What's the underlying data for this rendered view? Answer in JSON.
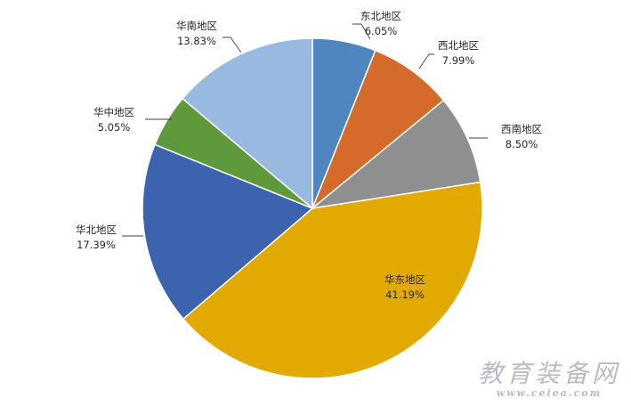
{
  "chart_data": {
    "type": "pie",
    "title": "",
    "categories": [
      "东北地区",
      "西北地区",
      "西南地区",
      "华东地区",
      "华北地区",
      "华中地区",
      "华南地区"
    ],
    "values": [
      6.05,
      7.99,
      8.5,
      41.19,
      17.39,
      5.05,
      13.83
    ],
    "value_labels": [
      "6.05%",
      "7.99%",
      "8.50%",
      "41.19%",
      "17.39%",
      "5.05%",
      "13.83%"
    ],
    "colors": [
      "#4F86BF",
      "#D46B2A",
      "#8F8F8F",
      "#E2AA00",
      "#3B63AE",
      "#5E9A3C",
      "#98B9E0"
    ],
    "start_angle": "12 o'clock",
    "direction": "clockwise",
    "legend": "none",
    "data_labels": "outside with leader lines, except largest slice inside"
  },
  "watermark": {
    "text": "教育装备网",
    "url": "www.ceiea.com"
  }
}
